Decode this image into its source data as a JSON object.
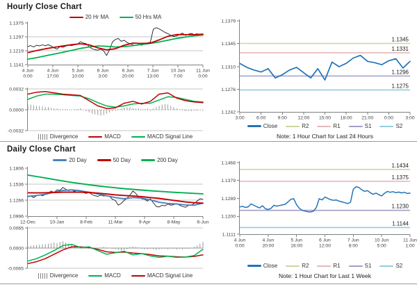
{
  "colors": {
    "close_black": "#1a1a1a",
    "ma_red": "#C00000",
    "ma_green": "#00B050",
    "ma20_blue": "#4F81BD",
    "close_blue": "#2273B8",
    "r2_olive": "#C9D79E",
    "r1_pink": "#E6B8B7",
    "s1_purple": "#A39EC7",
    "s2_cyan": "#93CDDC",
    "divergence_gray": "#808080",
    "grid_gray": "#C6C6C6",
    "axis_gray": "#7F7F7F",
    "text_dark": "#404040"
  },
  "chart_data": [
    {
      "id": "hourly",
      "title": "Hourly Close Chart",
      "type": "line",
      "price": {
        "legend": [
          "20 Hr MA",
          "50 Hrs MA"
        ],
        "yticks": [
          1.1375,
          1.1297,
          1.1219,
          1.1141
        ],
        "xticks": [
          [
            "4 Jun",
            "0:00"
          ],
          [
            "4 Jun",
            "17:00"
          ],
          [
            "5 Jun",
            "10:00"
          ],
          [
            "6 Jun",
            "3:00"
          ],
          [
            "6 Jun",
            "20:00"
          ],
          [
            "7 Jun",
            "13:00"
          ],
          [
            "10 Jun",
            "7:00"
          ],
          [
            "11 Jun",
            "0:00"
          ]
        ],
        "series": {
          "close": [
            1.1242,
            1.1248,
            1.124,
            1.125,
            1.1246,
            1.1252,
            1.1247,
            1.1253,
            1.1245,
            1.1235,
            1.1228,
            1.1242,
            1.1238,
            1.1245,
            1.125,
            1.1248,
            1.1252,
            1.1255,
            1.127,
            1.1262,
            1.1258,
            1.1242,
            1.123,
            1.1225,
            1.1222,
            1.1228,
            1.1218,
            1.1192,
            1.1225,
            1.1268,
            1.1282,
            1.1288,
            1.1272,
            1.1278,
            1.1265,
            1.1258,
            1.1252,
            1.1248,
            1.1255,
            1.125,
            1.1258,
            1.1262,
            1.1268,
            1.134,
            1.1348,
            1.1342,
            1.1332,
            1.1322,
            1.1315,
            1.1305,
            1.1298,
            1.1302,
            1.131,
            1.1318,
            1.1305,
            1.1312,
            1.1316,
            1.131,
            1.1314,
            1.1308,
            1.1312
          ],
          "ma20": [
            1.1208,
            1.122,
            1.123,
            1.1238,
            1.1246,
            1.1253,
            1.1258,
            1.1252,
            1.1235,
            1.1224,
            1.123,
            1.125,
            1.1262,
            1.126,
            1.1262,
            1.128,
            1.13,
            1.131,
            1.1309,
            1.1309,
            1.1312
          ],
          "ma50": [
            1.1172,
            1.118,
            1.119,
            1.12,
            1.121,
            1.1221,
            1.1232,
            1.124,
            1.1246,
            1.1244,
            1.124,
            1.1242,
            1.1248,
            1.1254,
            1.126,
            1.1268,
            1.1278,
            1.1288,
            1.1296,
            1.1303,
            1.1307
          ]
        }
      },
      "macd": {
        "legend": [
          "Divergence",
          "MACD",
          "MACD Signal Line"
        ],
        "yticks": [
          0.0032,
          0.0,
          -0.0032
        ],
        "series": {
          "macd": [
            0.0024,
            0.0027,
            0.0028,
            0.0026,
            0.0024,
            0.0023,
            0.0022,
            0.0014,
            0.0006,
            0.0002,
            0.0003,
            0.001,
            0.0013,
            0.0009,
            0.0013,
            0.0024,
            0.0026,
            0.0018,
            0.0014,
            0.0012,
            0.0011
          ],
          "signal": [
            0.0016,
            0.0021,
            0.0024,
            0.0024,
            0.0023,
            0.0022,
            0.0021,
            0.0017,
            0.0011,
            0.0006,
            0.0004,
            0.0006,
            0.0009,
            0.001,
            0.001,
            0.0015,
            0.002,
            0.0019,
            0.0016,
            0.0013,
            0.0012
          ]
        },
        "divergence": [
          0.0008,
          0.0008,
          0.0007,
          0.0006,
          0.0006,
          0.0005,
          0.0004,
          0.0004,
          0.0003,
          0.0002,
          0.0002,
          0.0001,
          0.0001,
          0.0001,
          0.0,
          0.0,
          0.0001,
          0.0001,
          0.0002,
          0.0,
          -0.0002,
          -0.0004,
          -0.0006,
          -0.0007,
          -0.0008,
          -0.0009,
          -0.0008,
          -0.0006,
          -0.0004,
          -0.0002,
          -0.0001,
          0.0001,
          0.0002,
          0.0003,
          0.0004,
          0.0004,
          0.0003,
          0.0002,
          0.0002,
          0.0001,
          0.0001,
          0.0002,
          -0.0001,
          0.0002,
          0.0004,
          0.0006,
          0.0008,
          0.0009,
          0.0008,
          0.0006,
          0.0004,
          0.0002,
          0.0001,
          -0.0001,
          -0.0002,
          -0.0002,
          -0.0002,
          -0.0001,
          -0.0001,
          0.0,
          -0.0001
        ]
      }
    },
    {
      "id": "hourly-24h-levels",
      "type": "line",
      "note": "Note: 1 Hour Chart for Last 24 Hours",
      "legend": [
        "Close",
        "R2",
        "R1",
        "S1",
        "S2"
      ],
      "yticks": [
        1.1379,
        1.1345,
        1.131,
        1.1276,
        1.1242
      ],
      "xticks": [
        "3:00",
        "6:00",
        "9:00",
        "12:00",
        "15:00",
        "18:00",
        "21:00",
        "0:00",
        "3:00"
      ],
      "levels": [
        {
          "name": "R2",
          "value": 1.1345,
          "color": "r2_olive"
        },
        {
          "name": "R1",
          "value": 1.1331,
          "color": "r1_pink"
        },
        {
          "name": "S1",
          "value": 1.1296,
          "color": "s1_purple"
        },
        {
          "name": "S2",
          "value": 1.1275,
          "color": "s2_cyan"
        }
      ],
      "series": {
        "close": [
          1.1315,
          1.1309,
          1.1305,
          1.1302,
          1.1307,
          1.1293,
          1.1298,
          1.1305,
          1.1309,
          1.1301,
          1.1293,
          1.1307,
          1.129,
          1.1317,
          1.131,
          1.1315,
          1.1323,
          1.1327,
          1.1318,
          1.1316,
          1.1313,
          1.1319,
          1.1322,
          1.1308,
          1.1318
        ]
      }
    },
    {
      "id": "daily",
      "title": "Daily Close Chart",
      "type": "line",
      "price": {
        "legend": [
          "20 Day",
          "50 Day",
          "200 Day"
        ],
        "yticks": [
          1.1806,
          1.1536,
          1.1266,
          1.0996
        ],
        "xticks": [
          "12-Dec",
          "10-Jan",
          "8-Feb",
          "11-Mar",
          "9-Apr",
          "8-May",
          "6-Jun"
        ],
        "series": {
          "close": [
            1.132,
            1.1335,
            1.131,
            1.134,
            1.1355,
            1.134,
            1.136,
            1.1385,
            1.142,
            1.1395,
            1.144,
            1.143,
            1.148,
            1.145,
            1.1425,
            1.144,
            1.1415,
            1.1435,
            1.142,
            1.1395,
            1.138,
            1.1395,
            1.136,
            1.134,
            1.133,
            1.135,
            1.1335,
            1.134,
            1.133,
            1.128,
            1.126,
            1.118,
            1.121,
            1.126,
            1.13,
            1.135,
            1.142,
            1.138,
            1.131,
            1.129,
            1.128,
            1.125,
            1.129,
            1.122,
            1.116,
            1.115,
            1.118,
            1.117,
            1.12,
            1.118,
            1.119,
            1.121,
            1.118,
            1.116,
            1.1145,
            1.1175,
            1.118,
            1.121,
            1.125,
            1.129,
            1.128
          ],
          "ma20": [
            1.133,
            1.1345,
            1.1365,
            1.14,
            1.143,
            1.144,
            1.1425,
            1.14,
            1.137,
            1.134,
            1.131,
            1.129,
            1.131,
            1.13,
            1.127,
            1.123,
            1.121,
            1.12,
            1.1185,
            1.118,
            1.1215
          ],
          "ma50": [
            1.139,
            1.1388,
            1.139,
            1.1395,
            1.14,
            1.1402,
            1.14,
            1.1395,
            1.1385,
            1.137,
            1.1355,
            1.1345,
            1.1335,
            1.1325,
            1.131,
            1.1295,
            1.1275,
            1.1255,
            1.1235,
            1.1222,
            1.1215
          ],
          "ma200": [
            1.169,
            1.1665,
            1.164,
            1.1615,
            1.159,
            1.1567,
            1.1545,
            1.1525,
            1.1507,
            1.149,
            1.1475,
            1.146,
            1.1448,
            1.1436,
            1.1425,
            1.1415,
            1.1405,
            1.1396,
            1.1388,
            1.138,
            1.1373
          ]
        }
      },
      "macd": {
        "legend": [
          "Divergence",
          "MACD",
          "MACD Signal Line"
        ],
        "yticks": [
          0.0065,
          0.0,
          -0.0065
        ],
        "series": {
          "macd": [
            -0.0042,
            -0.0034,
            -0.0022,
            -0.0008,
            0.0008,
            0.0012,
            0.0002,
            0.0004,
            -0.0008,
            -0.002,
            -0.0015,
            -0.001,
            -0.0022,
            -0.0018,
            -0.0025,
            -0.003,
            -0.0026,
            -0.003,
            -0.0029,
            -0.0024,
            -0.0004
          ],
          "signal": [
            -0.005,
            -0.0044,
            -0.0034,
            -0.002,
            -0.0006,
            0.0004,
            0.0004,
            0.0002,
            -0.0004,
            -0.0012,
            -0.0014,
            -0.0013,
            -0.0016,
            -0.0018,
            -0.0021,
            -0.0025,
            -0.0026,
            -0.0028,
            -0.0029,
            -0.0027,
            -0.0022
          ]
        },
        "divergence": [
          0.0006,
          0.0008,
          0.0009,
          0.001,
          0.0011,
          0.0012,
          0.0013,
          0.0014,
          0.0016,
          0.0018,
          0.0016,
          0.002,
          0.0022,
          0.0018,
          0.0014,
          0.001,
          0.0008,
          0.0006,
          0.0004,
          0.0002,
          0.0,
          -0.0002,
          -0.0004,
          -0.0003,
          -0.0002,
          0.0002,
          0.0004,
          0.0002,
          0.0,
          -0.0002,
          -0.0004,
          -0.0006,
          -0.0008,
          -0.0006,
          -0.0004,
          0.0004,
          0.0006,
          0.0004,
          0.0002,
          -0.0002,
          -0.0004,
          -0.0004,
          -0.0002,
          -0.0004,
          -0.0006,
          -0.0004,
          -0.0002,
          -0.0002,
          -0.0004,
          -0.0002,
          -0.0002,
          -0.0004,
          -0.0002,
          -0.0004,
          -0.0002,
          -0.0002,
          0.0,
          0.0004,
          0.0008,
          0.0014,
          0.002
        ]
      }
    },
    {
      "id": "weekly-levels",
      "type": "line",
      "note": "Note: 1 Hour Chart for Last 1 Week",
      "legend": [
        "Close",
        "R2",
        "R1",
        "S1",
        "S2"
      ],
      "yticks": [
        1.1468,
        1.1379,
        1.1289,
        1.12,
        1.1111
      ],
      "xticks": [
        [
          "4 Jun",
          "0:00"
        ],
        [
          "4 Jun",
          "20:00"
        ],
        [
          "5 Jun",
          "16:00"
        ],
        [
          "6 Jun",
          "12:00"
        ],
        [
          "7 Jun",
          "8:00"
        ],
        [
          "10 Jun",
          "5:00"
        ],
        [
          "11 Jun",
          "1:00"
        ]
      ],
      "levels": [
        {
          "name": "R2",
          "value": 1.1434,
          "color": "r2_olive"
        },
        {
          "name": "R1",
          "value": 1.1375,
          "color": "r1_pink"
        },
        {
          "name": "S1",
          "value": 1.123,
          "color": "s1_purple"
        },
        {
          "name": "S2",
          "value": 1.1144,
          "color": "s2_cyan"
        }
      ],
      "series": {
        "close": [
          1.1247,
          1.125,
          1.1244,
          1.1248,
          1.1262,
          1.1255,
          1.1248,
          1.1242,
          1.1253,
          1.1238,
          1.1234,
          1.124,
          1.1255,
          1.1251,
          1.1254,
          1.1257,
          1.126,
          1.1272,
          1.1285,
          1.1288,
          1.1258,
          1.124,
          1.123,
          1.1226,
          1.1223,
          1.1222,
          1.1226,
          1.1245,
          1.1288,
          1.1282,
          1.1296,
          1.129,
          1.1283,
          1.128,
          1.1282,
          1.1276,
          1.1272,
          1.1268,
          1.1264,
          1.127,
          1.1335,
          1.1348,
          1.1344,
          1.1332,
          1.1325,
          1.1328,
          1.1318,
          1.131,
          1.1316,
          1.1308,
          1.1302,
          1.1315,
          1.1324,
          1.132,
          1.1323,
          1.1318,
          1.1321,
          1.1317,
          1.132,
          1.1314,
          1.1316
        ]
      }
    }
  ]
}
